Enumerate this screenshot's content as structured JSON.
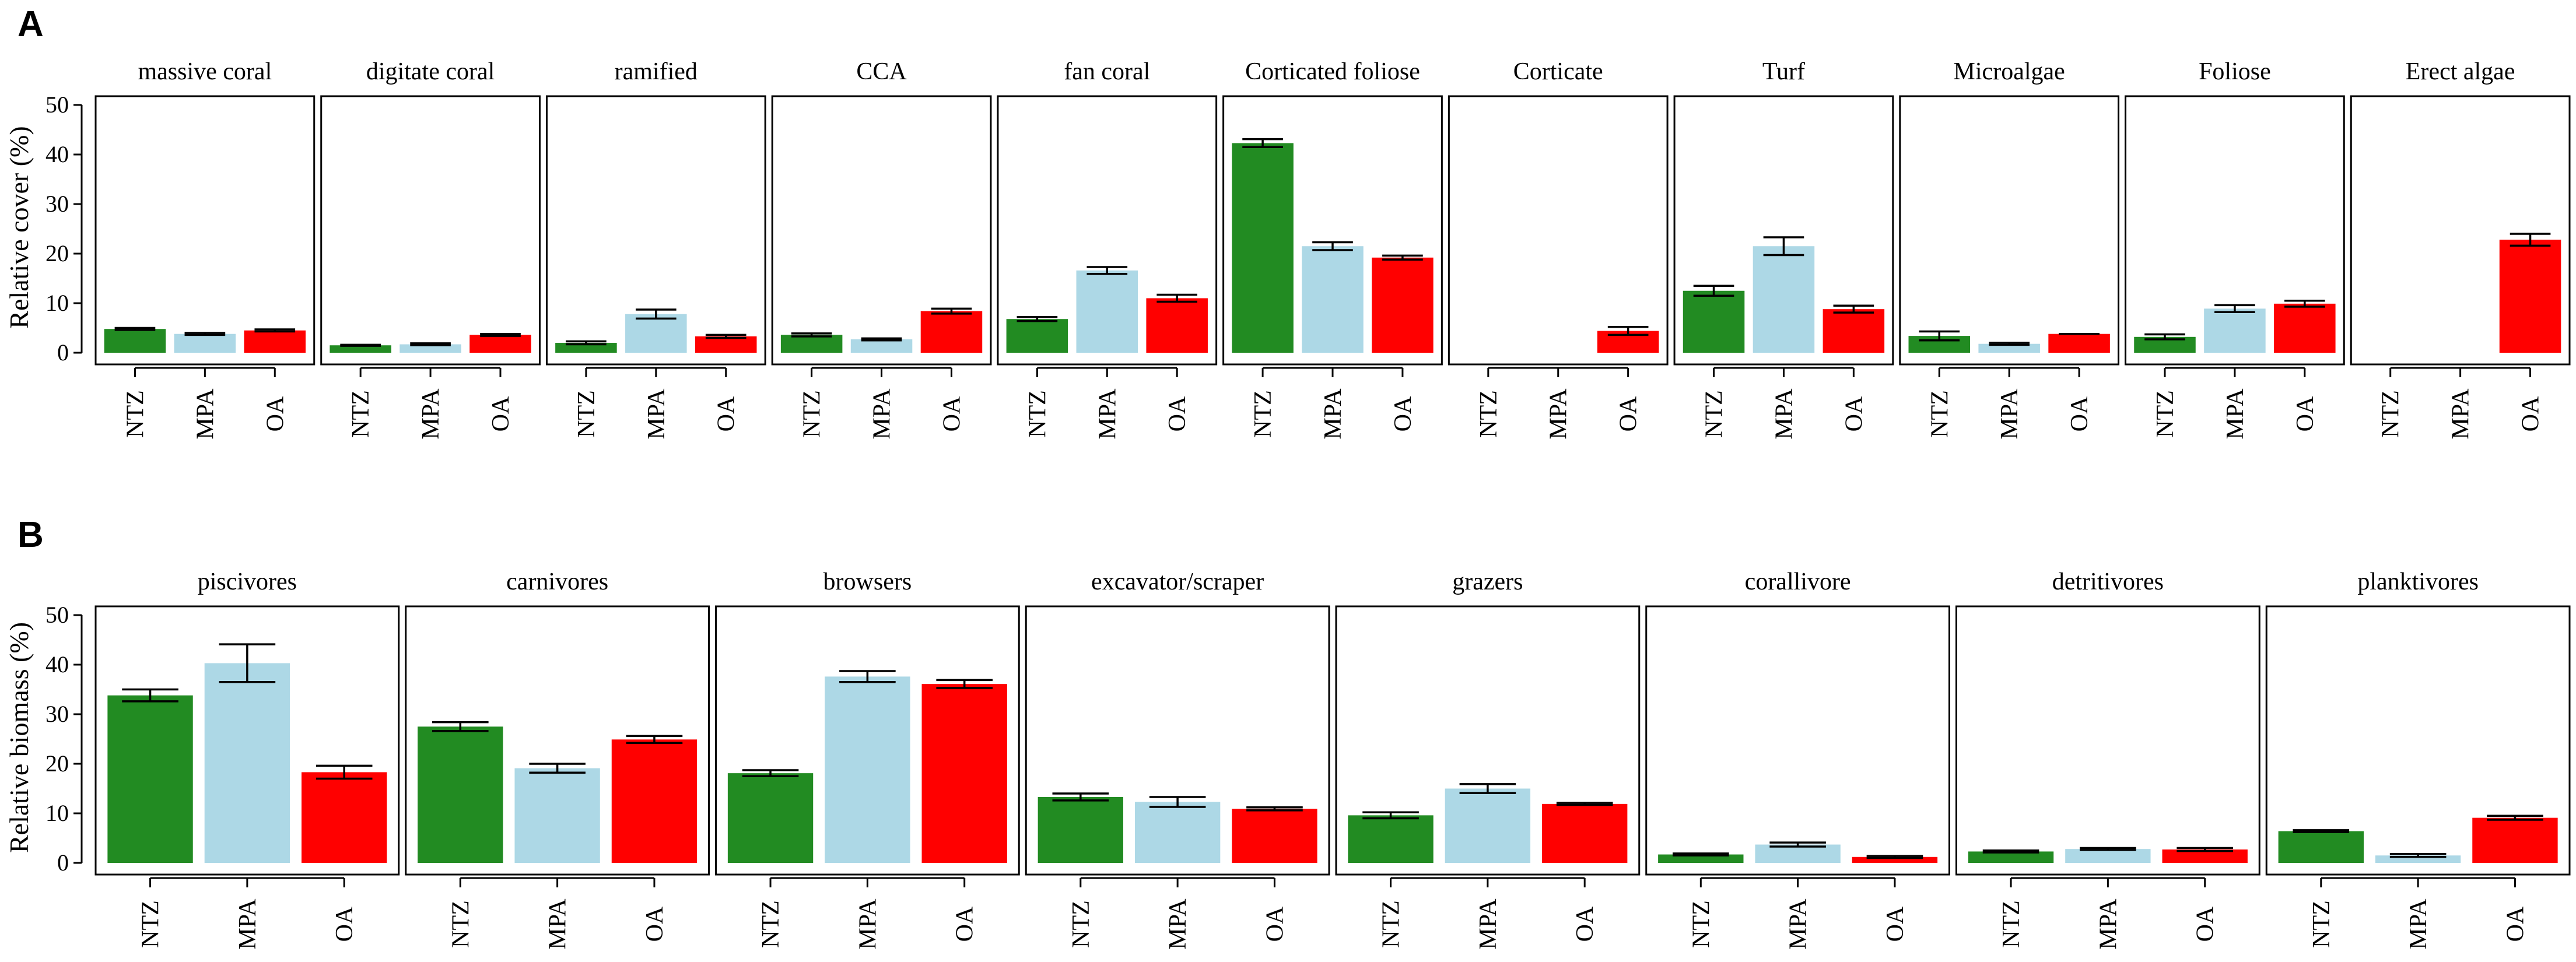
{
  "panels": [
    {
      "letter": "A",
      "ylabel": "Relative cover (%)",
      "ylim": [
        0,
        50
      ],
      "yticks": [
        0,
        10,
        20,
        30,
        40,
        50
      ],
      "categories": [
        "NTZ",
        "MPA",
        "OA"
      ],
      "colors": [
        "#228B22",
        "#ADD8E6",
        "#FF0000"
      ],
      "chart_data": {
        "type": "bar",
        "title": "",
        "xlabel": "",
        "ylabel": "Relative cover (%)",
        "categories": [
          "NTZ",
          "MPA",
          "OA"
        ],
        "facets": [
          {
            "title": "massive coral",
            "values": [
              4.8,
              3.8,
              4.5
            ],
            "errors": [
              0.2,
              0.2,
              0.2
            ]
          },
          {
            "title": "digitate coral",
            "values": [
              1.5,
              1.7,
              3.6
            ],
            "errors": [
              0.1,
              0.2,
              0.2
            ]
          },
          {
            "title": "ramified",
            "values": [
              2.0,
              7.8,
              3.3
            ],
            "errors": [
              0.3,
              0.9,
              0.3
            ]
          },
          {
            "title": "CCA",
            "values": [
              3.6,
              2.7,
              8.4
            ],
            "errors": [
              0.3,
              0.2,
              0.5
            ]
          },
          {
            "title": "fan coral",
            "values": [
              6.8,
              16.6,
              11.0
            ],
            "errors": [
              0.4,
              0.7,
              0.7
            ]
          },
          {
            "title": "Corticated foliose",
            "values": [
              42.3,
              21.5,
              19.2
            ],
            "errors": [
              0.8,
              0.8,
              0.4
            ]
          },
          {
            "title": "Corticate",
            "values": [
              0,
              0,
              4.4
            ],
            "errors": [
              0,
              0,
              0.8
            ]
          },
          {
            "title": "Turf",
            "values": [
              12.5,
              21.5,
              8.8
            ],
            "errors": [
              1.0,
              1.8,
              0.7
            ]
          },
          {
            "title": "Microalgae",
            "values": [
              3.4,
              1.8,
              3.8
            ],
            "errors": [
              0.9,
              0.2,
              0.0
            ]
          },
          {
            "title": "Foliose",
            "values": [
              3.2,
              8.9,
              9.9
            ],
            "errors": [
              0.5,
              0.7,
              0.6
            ]
          },
          {
            "title": "Erect algae",
            "values": [
              0,
              0,
              22.8
            ],
            "errors": [
              0,
              0,
              1.2
            ]
          }
        ]
      }
    },
    {
      "letter": "B",
      "ylabel": "Relative biomass (%)",
      "ylim": [
        0,
        50
      ],
      "yticks": [
        0,
        10,
        20,
        30,
        40,
        50
      ],
      "categories": [
        "NTZ",
        "MPA",
        "OA"
      ],
      "colors": [
        "#228B22",
        "#ADD8E6",
        "#FF0000"
      ],
      "chart_data": {
        "type": "bar",
        "title": "",
        "xlabel": "",
        "ylabel": "Relative biomass (%)",
        "categories": [
          "NTZ",
          "MPA",
          "OA"
        ],
        "facets": [
          {
            "title": "piscivores",
            "values": [
              33.8,
              40.3,
              18.3
            ],
            "errors": [
              1.2,
              3.8,
              1.3
            ]
          },
          {
            "title": "carnivores",
            "values": [
              27.5,
              19.1,
              24.9
            ],
            "errors": [
              0.9,
              0.9,
              0.7
            ]
          },
          {
            "title": "browsers",
            "values": [
              18.1,
              37.6,
              36.1
            ],
            "errors": [
              0.6,
              1.1,
              0.8
            ]
          },
          {
            "title": "excavator/scraper",
            "values": [
              13.3,
              12.3,
              10.9
            ],
            "errors": [
              0.7,
              1.0,
              0.3
            ]
          },
          {
            "title": "grazers",
            "values": [
              9.6,
              15.0,
              11.9
            ],
            "errors": [
              0.6,
              0.9,
              0.2
            ]
          },
          {
            "title": "corallivore",
            "values": [
              1.7,
              3.7,
              1.2
            ],
            "errors": [
              0.2,
              0.4,
              0.2
            ]
          },
          {
            "title": "detritivores",
            "values": [
              2.3,
              2.8,
              2.7
            ],
            "errors": [
              0.2,
              0.2,
              0.3
            ]
          },
          {
            "title": "planktivores",
            "values": [
              6.4,
              1.5,
              9.1
            ],
            "errors": [
              0.2,
              0.3,
              0.4
            ]
          }
        ]
      }
    }
  ]
}
